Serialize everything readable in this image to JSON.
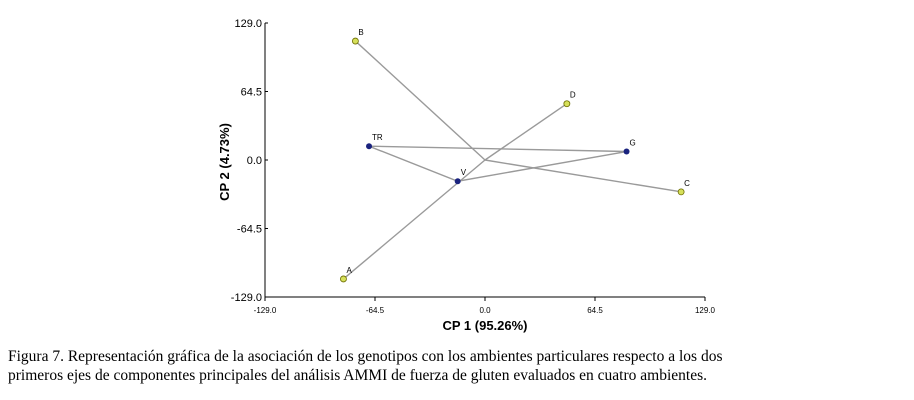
{
  "chart_data": {
    "type": "scatter",
    "title": "",
    "xlabel": "CP 1 (95.26%)",
    "ylabel": "CP 2 (4.73%)",
    "xlim": [
      -129.0,
      129.0
    ],
    "ylim": [
      -129.0,
      129.0
    ],
    "x_ticks": [
      "-129.0",
      "-64.5",
      "0.0",
      "64.5",
      "129.0"
    ],
    "y_ticks": [
      "129.0",
      "64.5",
      "0.0",
      "-64.5",
      "-129.0"
    ],
    "grid": false,
    "colors": {
      "environment": "#d6e05a",
      "genotype": "#1a237e",
      "line": "#9a9a9a"
    },
    "environments": [
      {
        "label": "B",
        "x": -76,
        "y": 112
      },
      {
        "label": "D",
        "x": 48,
        "y": 53
      },
      {
        "label": "C",
        "x": 115,
        "y": -30
      },
      {
        "label": "A",
        "x": -83,
        "y": -112
      }
    ],
    "genotypes": [
      {
        "label": "TR",
        "x": -68,
        "y": 13
      },
      {
        "label": "G",
        "x": 83,
        "y": 8
      },
      {
        "label": "V",
        "x": -16,
        "y": -20
      }
    ]
  },
  "caption": {
    "line1": "Figura 7.  Representación gráfica de la asociación de los genotipos con los  ambientes particulares respecto a los dos",
    "line2": "primeros ejes de componentes principales del análisis AMMI de fuerza de gluten evaluados en cuatro ambientes."
  }
}
